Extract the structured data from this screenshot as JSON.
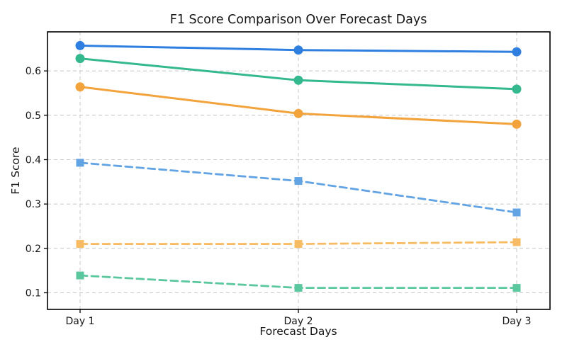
{
  "figure": {
    "background": "#ffffff",
    "text_color": "#161616",
    "spine_color": "#000000"
  },
  "chart_data": {
    "type": "line",
    "title": "F1 Score Comparison Over Forecast Days",
    "xlabel": "Forecast Days",
    "ylabel": "F1 Score",
    "categories": [
      "Day 1",
      "Day 2",
      "Day 3"
    ],
    "yticks": [
      0.1,
      0.2,
      0.3,
      0.4,
      0.5,
      0.6
    ],
    "ylim": [
      0.0625,
      0.688
    ],
    "grid": true,
    "grid_style": "dashed",
    "grid_color": "#cccccc",
    "legend_position": "none",
    "series": [
      {
        "name": "blue-solid-circles",
        "color": "#2E7FE0",
        "line_style": "solid",
        "marker": "circle",
        "values": [
          0.657,
          0.647,
          0.643
        ]
      },
      {
        "name": "green-solid-circles",
        "color": "#34B88D",
        "line_style": "solid",
        "marker": "circle",
        "values": [
          0.628,
          0.579,
          0.559
        ]
      },
      {
        "name": "orange-solid-circles",
        "color": "#F2A33C",
        "line_style": "solid",
        "marker": "circle",
        "values": [
          0.564,
          0.504,
          0.48
        ]
      },
      {
        "name": "blue-dashed-squares",
        "color": "#61A3E3",
        "line_style": "dashed",
        "marker": "square",
        "values": [
          0.393,
          0.352,
          0.281
        ]
      },
      {
        "name": "orange-dashed-squares",
        "color": "#F7BC63",
        "line_style": "dashed",
        "marker": "square",
        "values": [
          0.21,
          0.21,
          0.214
        ]
      },
      {
        "name": "green-dashed-squares",
        "color": "#5BC79E",
        "line_style": "dashed",
        "marker": "square",
        "values": [
          0.139,
          0.111,
          0.111
        ]
      }
    ]
  }
}
